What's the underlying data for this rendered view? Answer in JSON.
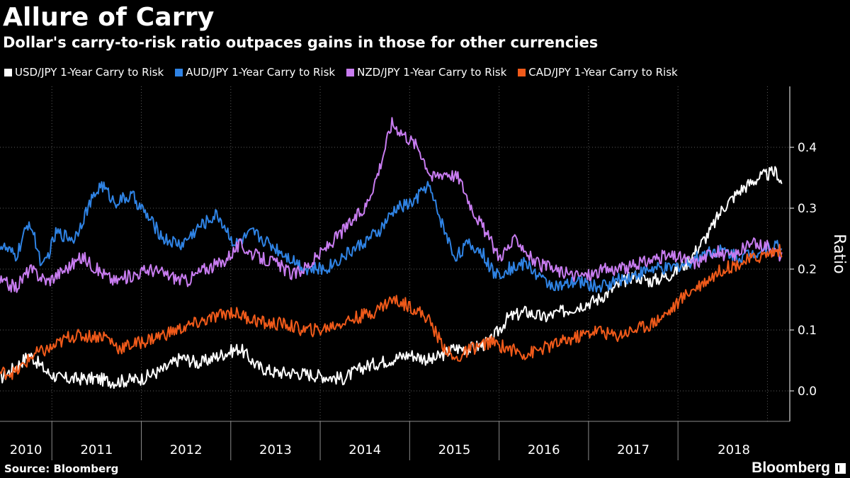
{
  "chart": {
    "title": "Allure of Carry",
    "subtitle": "Dollar's carry-to-risk ratio outpaces gains in those for other currencies",
    "source": "Source: Bloomberg",
    "brand": "Bloomberg"
  },
  "chart_data": {
    "type": "line",
    "title": "Allure of Carry",
    "subtitle": "Dollar's carry-to-risk ratio outpaces gains in those for other currencies",
    "ylabel": "Ratio",
    "xlabel": "",
    "ylim": [
      -0.05,
      0.5
    ],
    "xlim": [
      2009.92,
      2018.75
    ],
    "x_tick_labels": [
      "2010",
      "2011",
      "2012",
      "2013",
      "2014",
      "2015",
      "2016",
      "2017",
      "2018"
    ],
    "x_year_centers": [
      2010,
      2011,
      2012,
      2013,
      2014,
      2015,
      2016,
      2017,
      2018
    ],
    "y_ticks": [
      0.0,
      0.1,
      0.2,
      0.3,
      0.4
    ],
    "y_tick_labels": [
      "0.0",
      "0.1",
      "0.2",
      "0.3",
      "0.4"
    ],
    "y_axis_side": "right",
    "grid": true,
    "legend_position": "top",
    "series": [
      {
        "name": "USD/JPY 1-Year Carry to Risk",
        "color": "#ffffff",
        "points": [
          [
            2009.92,
            0.02
          ],
          [
            2010.1,
            0.04
          ],
          [
            2010.25,
            0.06
          ],
          [
            2010.45,
            0.03
          ],
          [
            2010.6,
            0.02
          ],
          [
            2010.8,
            0.02
          ],
          [
            2011.0,
            0.02
          ],
          [
            2011.2,
            0.015
          ],
          [
            2011.5,
            0.02
          ],
          [
            2011.75,
            0.035
          ],
          [
            2011.95,
            0.055
          ],
          [
            2012.15,
            0.045
          ],
          [
            2012.4,
            0.06
          ],
          [
            2012.6,
            0.07
          ],
          [
            2012.8,
            0.04
          ],
          [
            2013.0,
            0.03
          ],
          [
            2013.2,
            0.03
          ],
          [
            2013.5,
            0.025
          ],
          [
            2013.75,
            0.02
          ],
          [
            2014.0,
            0.04
          ],
          [
            2014.25,
            0.05
          ],
          [
            2014.5,
            0.06
          ],
          [
            2014.75,
            0.05
          ],
          [
            2015.0,
            0.07
          ],
          [
            2015.2,
            0.07
          ],
          [
            2015.4,
            0.08
          ],
          [
            2015.6,
            0.12
          ],
          [
            2015.8,
            0.13
          ],
          [
            2016.0,
            0.12
          ],
          [
            2016.2,
            0.13
          ],
          [
            2016.4,
            0.14
          ],
          [
            2016.6,
            0.15
          ],
          [
            2016.8,
            0.17
          ],
          [
            2017.0,
            0.19
          ],
          [
            2017.2,
            0.18
          ],
          [
            2017.4,
            0.19
          ],
          [
            2017.6,
            0.21
          ],
          [
            2017.85,
            0.26
          ],
          [
            2018.0,
            0.3
          ],
          [
            2018.2,
            0.33
          ],
          [
            2018.4,
            0.35
          ],
          [
            2018.6,
            0.36
          ],
          [
            2018.66,
            0.34
          ]
        ]
      },
      {
        "name": "AUD/JPY 1-Year Carry to Risk",
        "color": "#2f83e4",
        "points": [
          [
            2009.92,
            0.24
          ],
          [
            2010.1,
            0.22
          ],
          [
            2010.25,
            0.28
          ],
          [
            2010.4,
            0.2
          ],
          [
            2010.55,
            0.26
          ],
          [
            2010.75,
            0.25
          ],
          [
            2010.9,
            0.3
          ],
          [
            2011.05,
            0.34
          ],
          [
            2011.2,
            0.31
          ],
          [
            2011.4,
            0.32
          ],
          [
            2011.6,
            0.28
          ],
          [
            2011.75,
            0.25
          ],
          [
            2011.95,
            0.24
          ],
          [
            2012.15,
            0.27
          ],
          [
            2012.35,
            0.29
          ],
          [
            2012.55,
            0.24
          ],
          [
            2012.75,
            0.26
          ],
          [
            2012.95,
            0.24
          ],
          [
            2013.15,
            0.22
          ],
          [
            2013.35,
            0.2
          ],
          [
            2013.55,
            0.2
          ],
          [
            2013.75,
            0.22
          ],
          [
            2013.95,
            0.24
          ],
          [
            2014.15,
            0.26
          ],
          [
            2014.35,
            0.3
          ],
          [
            2014.55,
            0.31
          ],
          [
            2014.7,
            0.34
          ],
          [
            2014.85,
            0.28
          ],
          [
            2015.0,
            0.22
          ],
          [
            2015.15,
            0.24
          ],
          [
            2015.3,
            0.23
          ],
          [
            2015.45,
            0.19
          ],
          [
            2015.6,
            0.2
          ],
          [
            2015.8,
            0.21
          ],
          [
            2016.0,
            0.18
          ],
          [
            2016.2,
            0.17
          ],
          [
            2016.4,
            0.18
          ],
          [
            2016.6,
            0.17
          ],
          [
            2016.8,
            0.18
          ],
          [
            2017.0,
            0.19
          ],
          [
            2017.2,
            0.2
          ],
          [
            2017.4,
            0.2
          ],
          [
            2017.6,
            0.21
          ],
          [
            2017.85,
            0.23
          ],
          [
            2018.0,
            0.23
          ],
          [
            2018.2,
            0.22
          ],
          [
            2018.4,
            0.23
          ],
          [
            2018.6,
            0.24
          ],
          [
            2018.66,
            0.23
          ]
        ]
      },
      {
        "name": "NZD/JPY 1-Year Carry to Risk",
        "color": "#c87cf0",
        "points": [
          [
            2009.92,
            0.18
          ],
          [
            2010.1,
            0.17
          ],
          [
            2010.25,
            0.2
          ],
          [
            2010.45,
            0.18
          ],
          [
            2010.65,
            0.2
          ],
          [
            2010.85,
            0.22
          ],
          [
            2011.0,
            0.2
          ],
          [
            2011.2,
            0.18
          ],
          [
            2011.4,
            0.19
          ],
          [
            2011.6,
            0.2
          ],
          [
            2011.8,
            0.19
          ],
          [
            2012.0,
            0.18
          ],
          [
            2012.2,
            0.2
          ],
          [
            2012.4,
            0.21
          ],
          [
            2012.6,
            0.24
          ],
          [
            2012.8,
            0.22
          ],
          [
            2013.0,
            0.21
          ],
          [
            2013.2,
            0.19
          ],
          [
            2013.4,
            0.21
          ],
          [
            2013.6,
            0.24
          ],
          [
            2013.8,
            0.27
          ],
          [
            2014.0,
            0.3
          ],
          [
            2014.15,
            0.36
          ],
          [
            2014.3,
            0.44
          ],
          [
            2014.45,
            0.42
          ],
          [
            2014.6,
            0.4
          ],
          [
            2014.75,
            0.35
          ],
          [
            2014.9,
            0.36
          ],
          [
            2015.05,
            0.35
          ],
          [
            2015.2,
            0.3
          ],
          [
            2015.35,
            0.26
          ],
          [
            2015.5,
            0.22
          ],
          [
            2015.7,
            0.25
          ],
          [
            2015.9,
            0.21
          ],
          [
            2016.1,
            0.2
          ],
          [
            2016.3,
            0.19
          ],
          [
            2016.5,
            0.19
          ],
          [
            2016.7,
            0.2
          ],
          [
            2016.9,
            0.2
          ],
          [
            2017.1,
            0.21
          ],
          [
            2017.3,
            0.22
          ],
          [
            2017.5,
            0.22
          ],
          [
            2017.7,
            0.21
          ],
          [
            2017.9,
            0.23
          ],
          [
            2018.1,
            0.22
          ],
          [
            2018.3,
            0.24
          ],
          [
            2018.5,
            0.24
          ],
          [
            2018.66,
            0.22
          ]
        ]
      },
      {
        "name": "CAD/JPY 1-Year Carry to Risk",
        "color": "#f05a1a",
        "points": [
          [
            2009.92,
            0.03
          ],
          [
            2010.1,
            0.03
          ],
          [
            2010.3,
            0.06
          ],
          [
            2010.5,
            0.07
          ],
          [
            2010.7,
            0.09
          ],
          [
            2010.9,
            0.09
          ],
          [
            2011.1,
            0.09
          ],
          [
            2011.25,
            0.07
          ],
          [
            2011.5,
            0.08
          ],
          [
            2011.7,
            0.09
          ],
          [
            2011.9,
            0.1
          ],
          [
            2012.1,
            0.11
          ],
          [
            2012.3,
            0.12
          ],
          [
            2012.5,
            0.13
          ],
          [
            2012.7,
            0.12
          ],
          [
            2012.9,
            0.11
          ],
          [
            2013.1,
            0.11
          ],
          [
            2013.3,
            0.1
          ],
          [
            2013.5,
            0.1
          ],
          [
            2013.7,
            0.11
          ],
          [
            2013.9,
            0.12
          ],
          [
            2014.1,
            0.13
          ],
          [
            2014.3,
            0.15
          ],
          [
            2014.5,
            0.14
          ],
          [
            2014.7,
            0.12
          ],
          [
            2014.85,
            0.08
          ],
          [
            2015.0,
            0.05
          ],
          [
            2015.2,
            0.07
          ],
          [
            2015.4,
            0.08
          ],
          [
            2015.6,
            0.07
          ],
          [
            2015.8,
            0.06
          ],
          [
            2016.0,
            0.07
          ],
          [
            2016.2,
            0.08
          ],
          [
            2016.4,
            0.09
          ],
          [
            2016.6,
            0.1
          ],
          [
            2016.8,
            0.09
          ],
          [
            2017.0,
            0.1
          ],
          [
            2017.2,
            0.11
          ],
          [
            2017.4,
            0.13
          ],
          [
            2017.6,
            0.16
          ],
          [
            2017.8,
            0.18
          ],
          [
            2018.0,
            0.2
          ],
          [
            2018.2,
            0.21
          ],
          [
            2018.4,
            0.22
          ],
          [
            2018.6,
            0.23
          ],
          [
            2018.66,
            0.23
          ]
        ]
      }
    ]
  }
}
